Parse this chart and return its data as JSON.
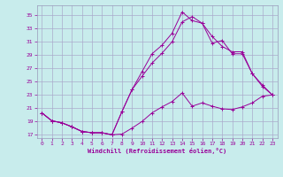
{
  "xlabel": "Windchill (Refroidissement éolien,°C)",
  "bg_color": "#c8ecec",
  "grid_color": "#aaaacc",
  "line_color": "#990099",
  "xlim": [
    -0.5,
    23.5
  ],
  "ylim": [
    16.5,
    36.5
  ],
  "yticks": [
    17,
    19,
    21,
    23,
    25,
    27,
    29,
    31,
    33,
    35
  ],
  "xticks": [
    0,
    1,
    2,
    3,
    4,
    5,
    6,
    7,
    8,
    9,
    10,
    11,
    12,
    13,
    14,
    15,
    16,
    17,
    18,
    19,
    20,
    21,
    22,
    23
  ],
  "line1_x": [
    0,
    1,
    2,
    3,
    4,
    5,
    6,
    7,
    8,
    9,
    10,
    11,
    12,
    13,
    14,
    15,
    16,
    17,
    18,
    19,
    20,
    21,
    22,
    23
  ],
  "line1_y": [
    20.3,
    19.1,
    18.8,
    18.2,
    17.5,
    17.3,
    17.3,
    17.0,
    17.1,
    18.0,
    19.0,
    20.3,
    21.2,
    22.0,
    23.3,
    21.3,
    21.8,
    21.3,
    20.9,
    20.8,
    21.2,
    21.8,
    22.8,
    23.0
  ],
  "line2_x": [
    0,
    1,
    2,
    3,
    4,
    5,
    6,
    7,
    8,
    9,
    10,
    11,
    12,
    13,
    14,
    15,
    16,
    17,
    18,
    19,
    20,
    21,
    22,
    23
  ],
  "line2_y": [
    20.3,
    19.1,
    18.8,
    18.2,
    17.5,
    17.3,
    17.3,
    17.0,
    20.5,
    23.8,
    26.5,
    29.2,
    30.5,
    32.3,
    35.5,
    34.2,
    33.8,
    30.8,
    31.2,
    29.2,
    29.2,
    26.2,
    24.5,
    23.0
  ],
  "line3_x": [
    0,
    1,
    2,
    3,
    4,
    5,
    6,
    7,
    8,
    9,
    10,
    11,
    12,
    13,
    14,
    15,
    16,
    17,
    18,
    19,
    20,
    21,
    22,
    23
  ],
  "line3_y": [
    20.3,
    19.1,
    18.8,
    18.2,
    17.5,
    17.3,
    17.3,
    17.0,
    20.5,
    23.8,
    25.8,
    27.8,
    29.3,
    31.0,
    34.0,
    34.8,
    33.8,
    31.8,
    30.3,
    29.5,
    29.5,
    26.2,
    24.3,
    23.0
  ]
}
